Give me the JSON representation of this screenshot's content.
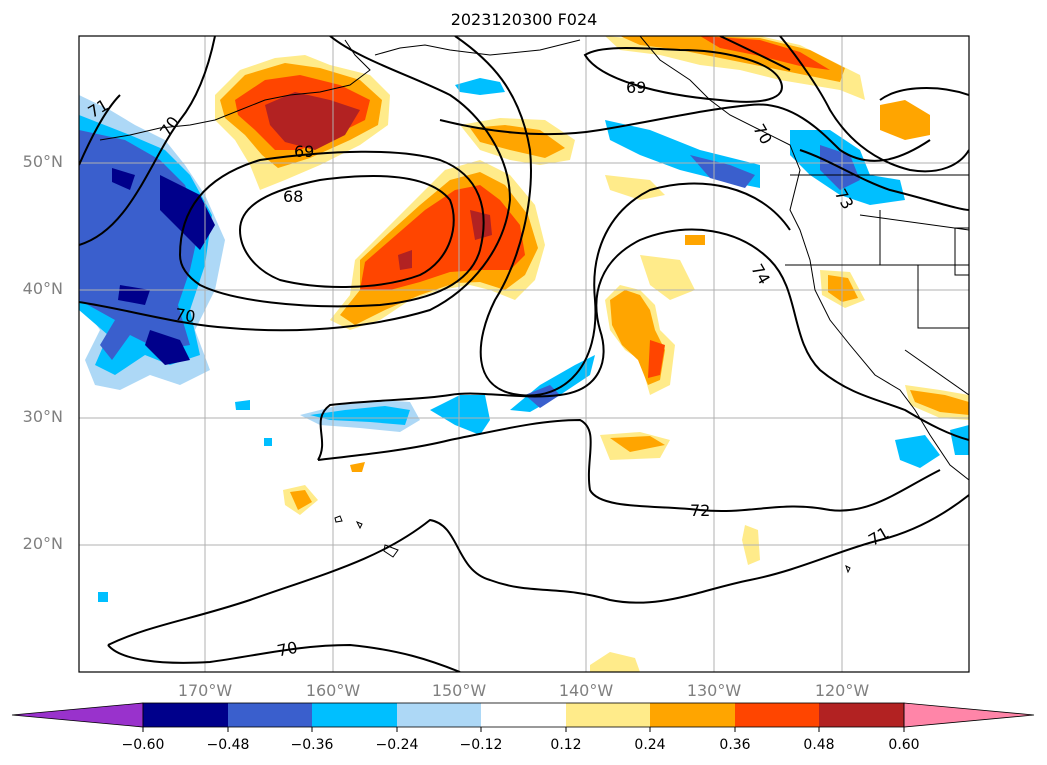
{
  "title": "2023120300 F024",
  "map": {
    "projection": "Miller / equirectangular",
    "extent": {
      "lon_min": -180,
      "lon_max": -110,
      "lat_min": 10,
      "lat_max": 60
    },
    "lat_labels": [
      "50°N",
      "40°N",
      "30°N",
      "20°N"
    ],
    "lon_labels": [
      "170°W",
      "160°W",
      "150°W",
      "140°W",
      "130°W",
      "120°W"
    ],
    "contour_labels": [
      "71",
      "70",
      "69",
      "68",
      "70",
      "69",
      "70",
      "74",
      "73",
      "72",
      "71",
      "70"
    ],
    "contour_color": "#000000",
    "gridlines": true
  },
  "colorbar": {
    "ticks": [
      "−0.60",
      "−0.48",
      "−0.36",
      "−0.24",
      "−0.12",
      "0.12",
      "0.24",
      "0.36",
      "0.48",
      "0.60"
    ],
    "colors": [
      "#9932cc",
      "#00008b",
      "#3a5fcd",
      "#00bfff",
      "#add8f6",
      "#ffffff",
      "#ffeb8a",
      "#ffa500",
      "#ff4500",
      "#b22222",
      "#ff85a8"
    ],
    "extend": "both"
  }
}
